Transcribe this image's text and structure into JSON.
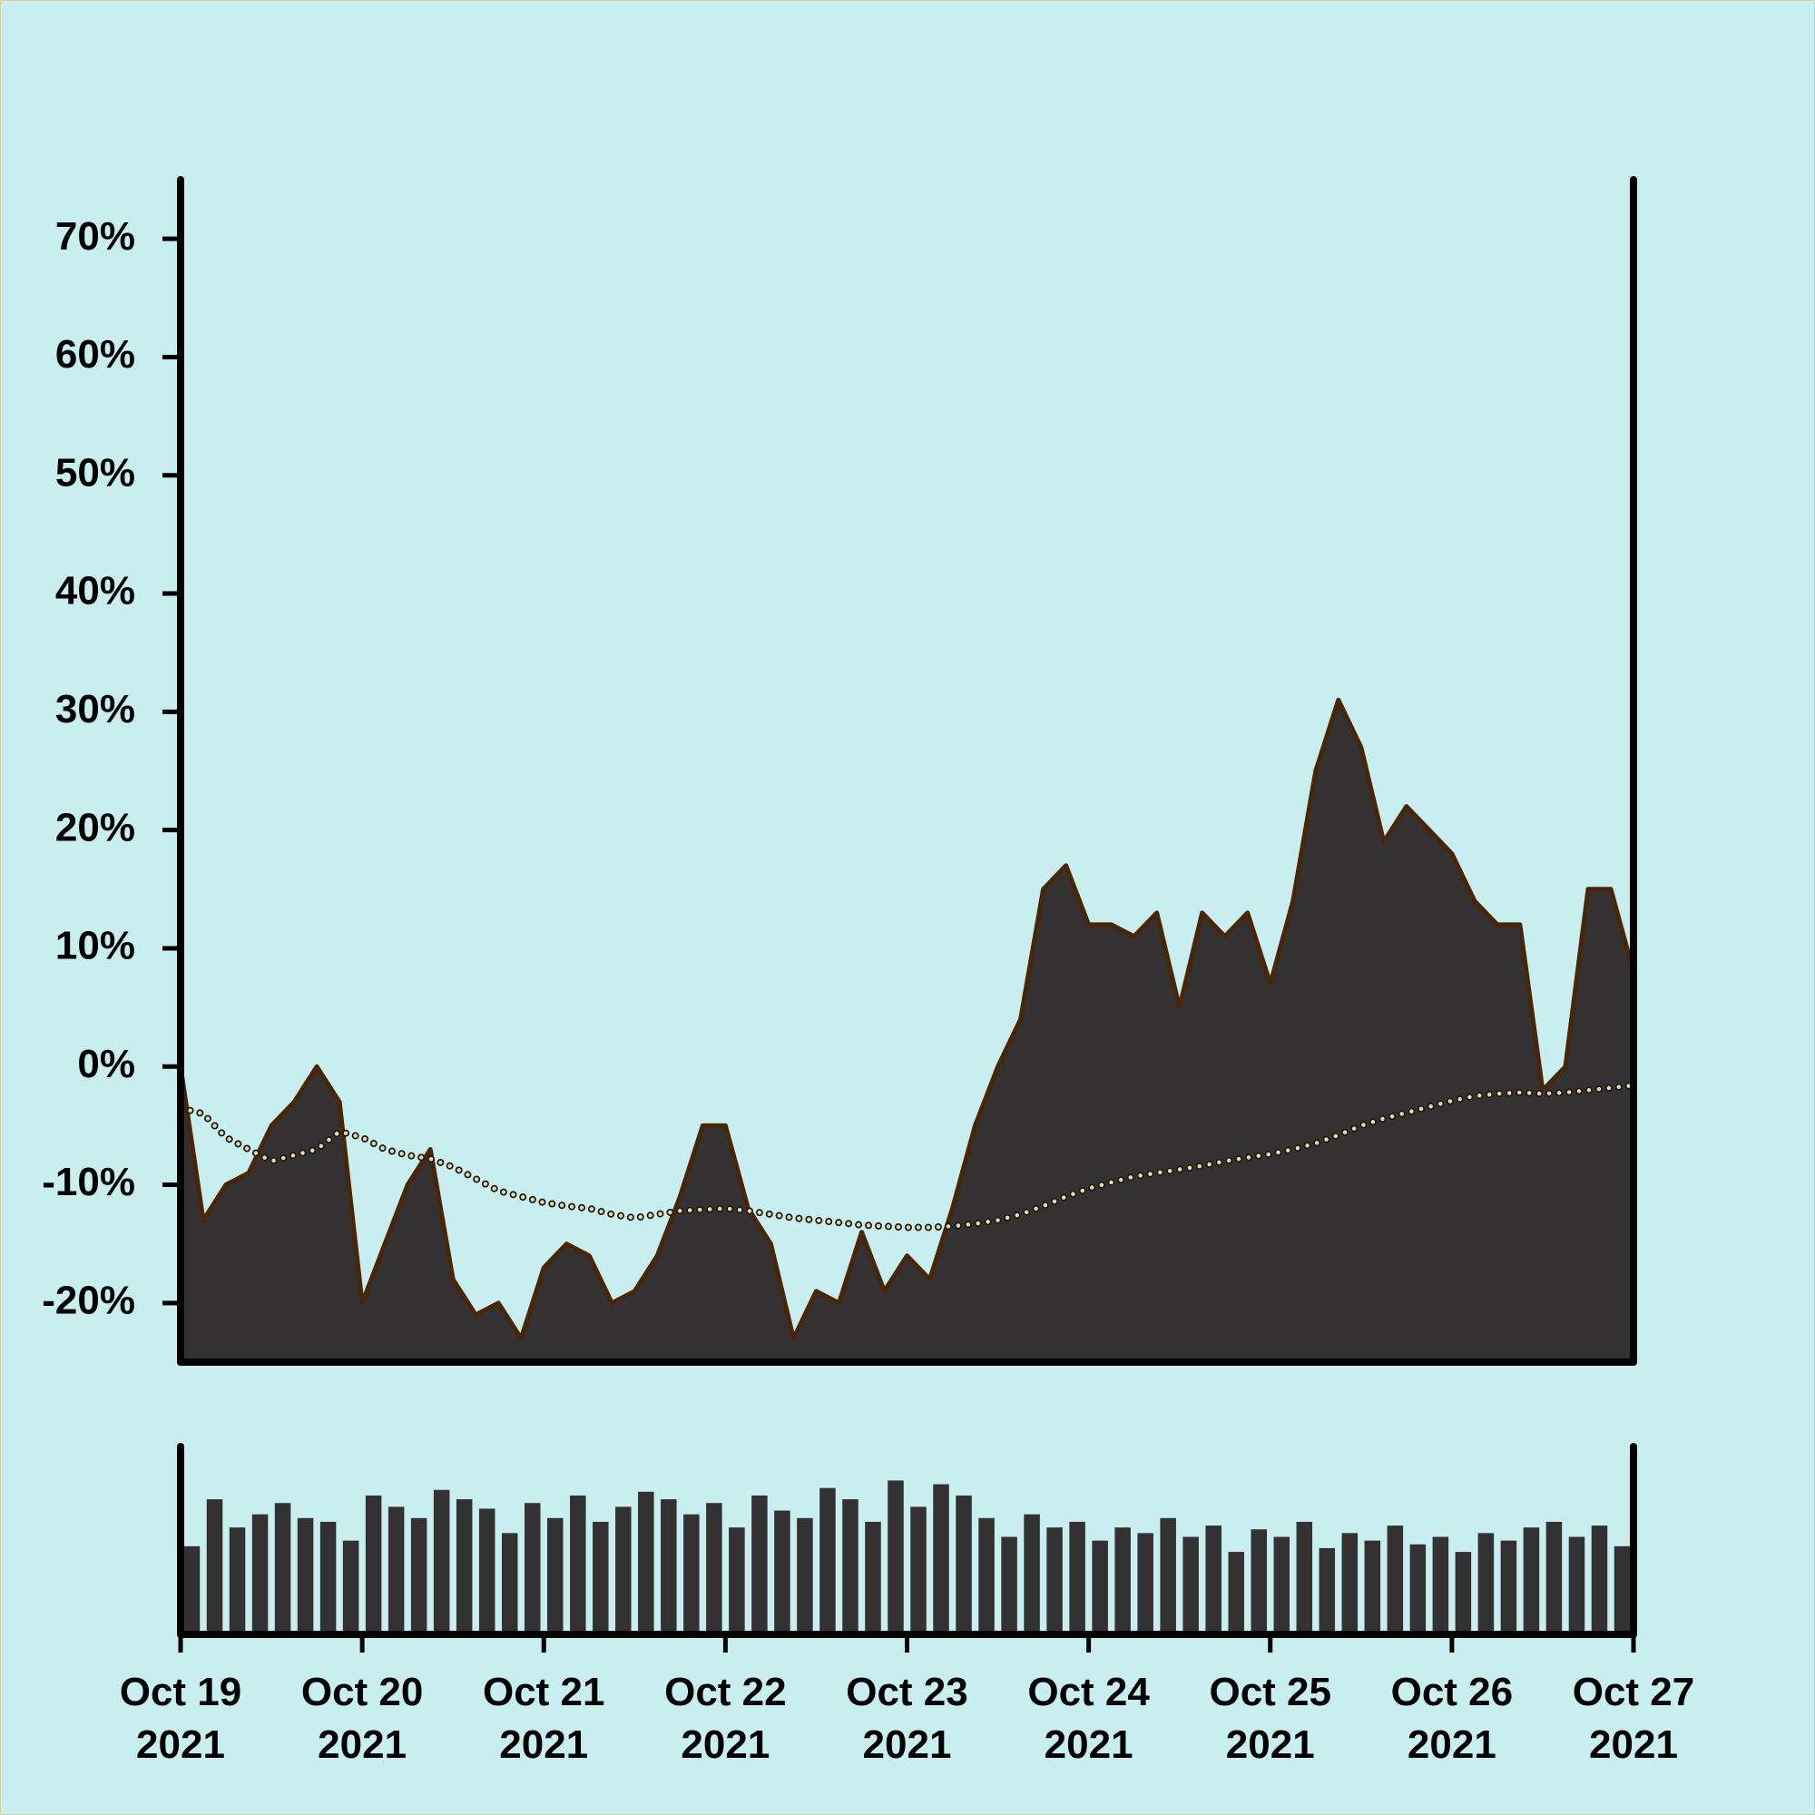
{
  "chart_data": [
    {
      "type": "area",
      "ylim": [
        -25,
        75
      ],
      "yticks": [
        {
          "value": -20,
          "label": "-20%"
        },
        {
          "value": -10,
          "label": "-10%"
        },
        {
          "value": 0,
          "label": "0%"
        },
        {
          "value": 10,
          "label": "10%"
        },
        {
          "value": 20,
          "label": "20%"
        },
        {
          "value": 30,
          "label": "30%"
        },
        {
          "value": 40,
          "label": "40%"
        },
        {
          "value": 50,
          "label": "50%"
        },
        {
          "value": 60,
          "label": "60%"
        },
        {
          "value": 70,
          "label": "70%"
        }
      ],
      "series": [
        {
          "color": "#333132",
          "line_color": "#4a2608",
          "values": [
            0,
            -13,
            -10,
            -9,
            -5,
            -3,
            0,
            -3,
            -20,
            -15,
            -10,
            -7,
            -18,
            -21,
            -20,
            -23,
            -17,
            -15,
            -16,
            -20,
            -19,
            -16,
            -11,
            -5,
            -5,
            -12,
            -15,
            -23,
            -19,
            -20,
            -14,
            -19,
            -16,
            -18,
            -12,
            -5,
            0,
            4,
            15,
            17,
            12,
            12,
            11,
            13,
            5,
            13,
            11,
            13,
            7,
            14,
            25,
            31,
            27,
            19,
            22,
            20,
            18,
            14,
            12,
            12,
            -2,
            0,
            15,
            15,
            8
          ]
        },
        {
          "color": "#f2d9a0",
          "line_color": "#1a1a1a",
          "style": "dotted",
          "values": [
            -3.5,
            -4,
            -6,
            -7,
            -8,
            -7.5,
            -7,
            -5.5,
            -6,
            -7,
            -7.5,
            -7.8,
            -8.5,
            -9.5,
            -10.5,
            -11,
            -11.5,
            -11.8,
            -12,
            -12.5,
            -12.8,
            -12.5,
            -12.2,
            -12.1,
            -12,
            -12.2,
            -12.5,
            -12.8,
            -13,
            -13.2,
            -13.4,
            -13.5,
            -13.6,
            -13.6,
            -13.5,
            -13.3,
            -13,
            -12.5,
            -11.8,
            -11,
            -10.3,
            -9.8,
            -9.3,
            -9,
            -8.7,
            -8.4,
            -8,
            -7.7,
            -7.4,
            -7,
            -6.5,
            -5.8,
            -5,
            -4.4,
            -3.9,
            -3.4,
            -2.9,
            -2.5,
            -2.3,
            -2.2,
            -2.3,
            -2.2,
            -2,
            -1.8,
            -1.6
          ]
        }
      ]
    },
    {
      "type": "bar",
      "color": "#333132",
      "xlim": [
        0,
        8
      ],
      "xticks": [
        {
          "value": 0,
          "label": "Oct 19\n2021"
        },
        {
          "value": 1,
          "label": "Oct 20\n2021"
        },
        {
          "value": 2,
          "label": "Oct 21\n2021"
        },
        {
          "value": 3,
          "label": "Oct 22\n2021"
        },
        {
          "value": 4,
          "label": "Oct 23\n2021"
        },
        {
          "value": 5,
          "label": "Oct 24\n2021"
        },
        {
          "value": 6,
          "label": "Oct 25\n2021"
        },
        {
          "value": 7,
          "label": "Oct 26\n2021"
        },
        {
          "value": 8,
          "label": "Oct 27\n2021"
        }
      ],
      "values": [
        45,
        70,
        55,
        62,
        68,
        60,
        58,
        48,
        72,
        66,
        60,
        75,
        70,
        65,
        52,
        68,
        60,
        72,
        58,
        66,
        74,
        70,
        62,
        68,
        55,
        72,
        64,
        60,
        76,
        70,
        58,
        80,
        66,
        78,
        72,
        60,
        50,
        62,
        55,
        58,
        48,
        55,
        52,
        60,
        50,
        56,
        42,
        54,
        50,
        58,
        44,
        52,
        48,
        56,
        46,
        50,
        42,
        52,
        48,
        55,
        58,
        50,
        56,
        45
      ]
    }
  ]
}
